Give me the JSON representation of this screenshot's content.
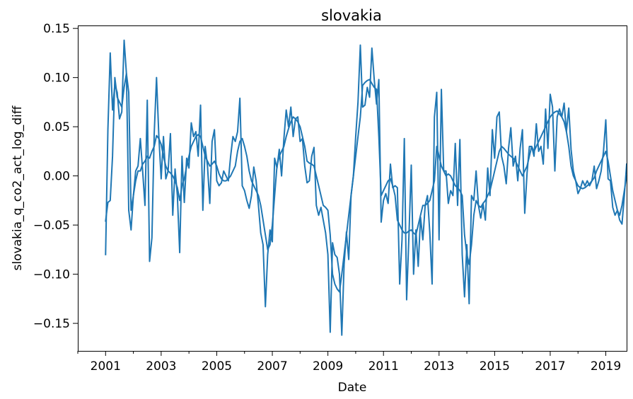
{
  "chart_data": {
    "type": "line",
    "title": "slovakia",
    "xlabel": "Date",
    "ylabel": "slovakia_q_co2_act_log_diff",
    "xlim": [
      2000.0,
      2019.75
    ],
    "ylim": [
      -0.178,
      0.153
    ],
    "x_ticks": [
      2001,
      2003,
      2005,
      2007,
      2009,
      2011,
      2013,
      2015,
      2017,
      2019
    ],
    "x_minor_ticks": [
      2000,
      2002,
      2004,
      2006,
      2008,
      2010,
      2012,
      2014,
      2016,
      2018
    ],
    "y_ticks": [
      -0.15,
      -0.1,
      -0.05,
      0.0,
      0.05,
      0.1,
      0.15
    ],
    "y_tick_labels": [
      "−0.15",
      "−0.10",
      "−0.05",
      "0.00",
      "0.05",
      "0.10",
      "0.15"
    ],
    "grid": false,
    "series": [
      {
        "color": "#1f77b4",
        "x": [
          2001.0,
          2001.083,
          2001.167,
          2001.25,
          2001.333,
          2001.417,
          2001.5,
          2001.583,
          2001.667,
          2001.75,
          2001.833,
          2001.917,
          2002.0,
          2002.083,
          2002.167,
          2002.25,
          2002.333,
          2002.417,
          2002.5,
          2002.583,
          2002.667,
          2002.75,
          2002.833,
          2002.917,
          2003.0,
          2003.083,
          2003.167,
          2003.25,
          2003.333,
          2003.417,
          2003.5,
          2003.583,
          2003.667,
          2003.75,
          2003.833,
          2003.917,
          2004.0,
          2004.083,
          2004.167,
          2004.25,
          2004.333,
          2004.417,
          2004.5,
          2004.583,
          2004.667,
          2004.75,
          2004.833,
          2004.917,
          2005.0,
          2005.083,
          2005.167,
          2005.25,
          2005.333,
          2005.417,
          2005.5,
          2005.583,
          2005.667,
          2005.75,
          2005.833,
          2005.917,
          2006.0,
          2006.083,
          2006.167,
          2006.25,
          2006.333,
          2006.417,
          2006.5,
          2006.583,
          2006.667,
          2006.75,
          2006.833,
          2006.917,
          2007.0,
          2007.083,
          2007.167,
          2007.25,
          2007.333,
          2007.417,
          2007.5,
          2007.583,
          2007.667,
          2007.75,
          2007.833,
          2007.917,
          2008.0,
          2008.083,
          2008.167,
          2008.25,
          2008.333,
          2008.417,
          2008.5,
          2008.583,
          2008.667,
          2008.75,
          2008.833,
          2008.917,
          2009.0,
          2009.083,
          2009.167,
          2009.25,
          2009.333,
          2009.417,
          2009.5,
          2009.583,
          2009.667,
          2009.75,
          2009.833,
          2009.917,
          2010.0,
          2010.083,
          2010.167,
          2010.25,
          2010.333,
          2010.417,
          2010.5,
          2010.583,
          2010.667,
          2010.75,
          2010.833,
          2010.917,
          2011.0,
          2011.083,
          2011.167,
          2011.25,
          2011.333,
          2011.417,
          2011.5,
          2011.583,
          2011.667,
          2011.75,
          2011.833,
          2011.917,
          2012.0,
          2012.083,
          2012.167,
          2012.25,
          2012.333,
          2012.417,
          2012.5,
          2012.583,
          2012.667,
          2012.75,
          2012.833,
          2012.917,
          2013.0,
          2013.083,
          2013.167,
          2013.25,
          2013.333,
          2013.417,
          2013.5,
          2013.583,
          2013.667,
          2013.75,
          2013.833,
          2013.917,
          2014.0,
          2014.083,
          2014.167,
          2014.25,
          2014.333,
          2014.417,
          2014.5,
          2014.583,
          2014.667,
          2014.75,
          2014.833,
          2014.917,
          2015.0,
          2015.083,
          2015.167,
          2015.25,
          2015.333,
          2015.417,
          2015.5,
          2015.583,
          2015.667,
          2015.75,
          2015.833,
          2015.917,
          2016.0,
          2016.083,
          2016.167,
          2016.25,
          2016.333,
          2016.417,
          2016.5,
          2016.583,
          2016.667,
          2016.75,
          2016.833,
          2016.917,
          2017.0,
          2017.083,
          2017.167,
          2017.25,
          2017.333,
          2017.417,
          2017.5,
          2017.583,
          2017.667,
          2017.75,
          2017.833,
          2017.917,
          2018.0,
          2018.083,
          2018.167,
          2018.25,
          2018.333,
          2018.417,
          2018.5,
          2018.583,
          2018.667,
          2018.75,
          2018.833,
          2018.917,
          2019.0,
          2019.083,
          2019.167,
          2019.25,
          2019.333,
          2019.417,
          2019.5,
          2019.583,
          2019.667,
          2019.75
        ],
        "y": [
          -0.08,
          0.047,
          0.125,
          0.067,
          0.093,
          0.085,
          0.058,
          0.065,
          0.138,
          0.104,
          -0.035,
          -0.055,
          -0.02,
          0.005,
          0.01,
          0.038,
          0.005,
          -0.03,
          0.077,
          -0.087,
          -0.063,
          0.043,
          0.1,
          0.04,
          -0.003,
          0.04,
          -0.003,
          0.005,
          0.043,
          -0.04,
          0.007,
          -0.02,
          -0.078,
          0.02,
          -0.027,
          0.018,
          0.008,
          0.054,
          0.04,
          0.045,
          0.02,
          0.072,
          -0.035,
          0.03,
          0.01,
          -0.028,
          0.035,
          0.047,
          -0.005,
          -0.01,
          -0.007,
          0.005,
          0.0,
          -0.005,
          0.02,
          0.04,
          0.035,
          0.045,
          0.079,
          -0.01,
          -0.015,
          -0.025,
          -0.033,
          -0.02,
          0.009,
          -0.005,
          -0.03,
          -0.058,
          -0.07,
          -0.133,
          -0.08,
          -0.055,
          -0.067,
          0.018,
          0.008,
          0.027,
          0.0,
          0.038,
          0.067,
          0.05,
          0.07,
          0.04,
          0.058,
          0.06,
          0.035,
          0.038,
          0.01,
          -0.007,
          -0.005,
          0.02,
          0.029,
          -0.03,
          -0.04,
          -0.032,
          -0.045,
          -0.058,
          -0.08,
          -0.159,
          -0.068,
          -0.08,
          -0.083,
          -0.1,
          -0.162,
          -0.09,
          -0.057,
          -0.085,
          -0.02,
          0.0,
          0.04,
          0.075,
          0.133,
          0.07,
          0.072,
          0.09,
          0.08,
          0.13,
          0.098,
          0.073,
          0.098,
          -0.047,
          -0.025,
          -0.018,
          -0.028,
          0.012,
          -0.012,
          -0.01,
          -0.012,
          -0.11,
          -0.065,
          0.038,
          -0.126,
          -0.06,
          0.011,
          -0.1,
          -0.055,
          -0.092,
          -0.042,
          -0.065,
          -0.03,
          -0.02,
          -0.058,
          -0.11,
          0.06,
          0.085,
          -0.065,
          0.088,
          0.005,
          0.005,
          -0.028,
          -0.015,
          -0.02,
          0.033,
          -0.03,
          0.037,
          -0.08,
          -0.123,
          -0.07,
          -0.13,
          -0.02,
          -0.025,
          0.005,
          -0.03,
          -0.043,
          -0.028,
          -0.045,
          0.008,
          -0.02,
          0.047,
          0.018,
          0.06,
          0.065,
          0.02,
          0.01,
          -0.008,
          0.028,
          0.049,
          0.01,
          0.02,
          -0.005,
          0.028,
          0.047,
          -0.038,
          0.003,
          0.03,
          0.03,
          0.02,
          0.053,
          0.025,
          0.03,
          0.012,
          0.068,
          0.028,
          0.083,
          0.07,
          0.005,
          0.06,
          0.068,
          0.06,
          0.074,
          0.045,
          0.069,
          0.027,
          0.005,
          -0.005,
          -0.018,
          -0.013,
          -0.005,
          -0.01,
          -0.005,
          -0.01,
          -0.005,
          0.01,
          -0.013,
          -0.005,
          0.005,
          0.025,
          0.057,
          -0.003,
          -0.005,
          -0.032,
          -0.04,
          -0.035,
          -0.045,
          -0.049,
          -0.02,
          0.012
        ]
      },
      {
        "color": "#1f77b4",
        "x": [
          2001.0,
          2001.083,
          2001.167,
          2001.25,
          2001.333,
          2001.417,
          2001.5,
          2001.583,
          2001.667,
          2001.75,
          2001.833,
          2001.917,
          2002.0,
          2002.083,
          2002.167,
          2002.25,
          2002.333,
          2002.417,
          2002.5,
          2002.583,
          2002.667,
          2002.75,
          2002.833,
          2002.917,
          2003.0,
          2003.083,
          2003.167,
          2003.25,
          2003.333,
          2003.417,
          2003.5,
          2003.583,
          2003.667,
          2003.75,
          2003.833,
          2003.917,
          2004.0,
          2004.083,
          2004.167,
          2004.25,
          2004.333,
          2004.417,
          2004.5,
          2004.583,
          2004.667,
          2004.75,
          2004.833,
          2004.917,
          2005.0,
          2005.083,
          2005.167,
          2005.25,
          2005.333,
          2005.417,
          2005.5,
          2005.583,
          2005.667,
          2005.75,
          2005.833,
          2005.917,
          2006.0,
          2006.083,
          2006.167,
          2006.25,
          2006.333,
          2006.417,
          2006.5,
          2006.583,
          2006.667,
          2006.75,
          2006.833,
          2006.917,
          2007.0,
          2007.083,
          2007.167,
          2007.25,
          2007.333,
          2007.417,
          2007.5,
          2007.583,
          2007.667,
          2007.75,
          2007.833,
          2007.917,
          2008.0,
          2008.083,
          2008.167,
          2008.25,
          2008.333,
          2008.417,
          2008.5,
          2008.583,
          2008.667,
          2008.75,
          2008.833,
          2008.917,
          2009.0,
          2009.083,
          2009.167,
          2009.25,
          2009.333,
          2009.417,
          2009.5,
          2009.583,
          2009.667,
          2009.75,
          2009.833,
          2009.917,
          2010.0,
          2010.083,
          2010.167,
          2010.25,
          2010.333,
          2010.417,
          2010.5,
          2010.583,
          2010.667,
          2010.75,
          2010.833,
          2010.917,
          2011.0,
          2011.083,
          2011.167,
          2011.25,
          2011.333,
          2011.417,
          2011.5,
          2011.583,
          2011.667,
          2011.75,
          2011.833,
          2011.917,
          2012.0,
          2012.083,
          2012.167,
          2012.25,
          2012.333,
          2012.417,
          2012.5,
          2012.583,
          2012.667,
          2012.75,
          2012.833,
          2012.917,
          2013.0,
          2013.083,
          2013.167,
          2013.25,
          2013.333,
          2013.417,
          2013.5,
          2013.583,
          2013.667,
          2013.75,
          2013.833,
          2013.917,
          2014.0,
          2014.083,
          2014.167,
          2014.25,
          2014.333,
          2014.417,
          2014.5,
          2014.583,
          2014.667,
          2014.75,
          2014.833,
          2014.917,
          2015.0,
          2015.083,
          2015.167,
          2015.25,
          2015.333,
          2015.417,
          2015.5,
          2015.583,
          2015.667,
          2015.75,
          2015.833,
          2015.917,
          2016.0,
          2016.083,
          2016.167,
          2016.25,
          2016.333,
          2016.417,
          2016.5,
          2016.583,
          2016.667,
          2016.75,
          2016.833,
          2016.917,
          2017.0,
          2017.083,
          2017.167,
          2017.25,
          2017.333,
          2017.417,
          2017.5,
          2017.583,
          2017.667,
          2017.75,
          2017.833,
          2017.917,
          2018.0,
          2018.083,
          2018.167,
          2018.25,
          2018.333,
          2018.417,
          2018.5,
          2018.583,
          2018.667,
          2018.75,
          2018.833,
          2018.917,
          2019.0,
          2019.083,
          2019.167,
          2019.25,
          2019.333,
          2019.417,
          2019.5,
          2019.583,
          2019.667,
          2019.75
        ],
        "y": [
          -0.046,
          -0.027,
          -0.025,
          0.02,
          0.1,
          0.08,
          0.075,
          0.07,
          0.09,
          0.104,
          0.085,
          -0.035,
          -0.02,
          -0.005,
          0.005,
          0.005,
          0.012,
          0.015,
          0.02,
          0.018,
          0.025,
          0.03,
          0.041,
          0.038,
          0.032,
          0.02,
          0.01,
          0.005,
          0.003,
          0.0,
          -0.005,
          -0.012,
          -0.025,
          -0.01,
          -0.003,
          0.01,
          0.02,
          0.03,
          0.035,
          0.04,
          0.042,
          0.04,
          0.03,
          0.02,
          0.015,
          0.01,
          0.012,
          0.015,
          0.01,
          0.002,
          -0.003,
          -0.005,
          -0.005,
          -0.003,
          0.0,
          0.005,
          0.01,
          0.025,
          0.035,
          0.038,
          0.03,
          0.02,
          0.005,
          -0.005,
          -0.01,
          -0.015,
          -0.02,
          -0.03,
          -0.045,
          -0.06,
          -0.075,
          -0.07,
          -0.05,
          -0.02,
          0.01,
          0.02,
          0.025,
          0.03,
          0.04,
          0.048,
          0.055,
          0.06,
          0.058,
          0.055,
          0.05,
          0.04,
          0.03,
          0.015,
          0.013,
          0.012,
          0.01,
          0.0,
          -0.01,
          -0.02,
          -0.03,
          -0.032,
          -0.035,
          -0.06,
          -0.1,
          -0.11,
          -0.115,
          -0.118,
          -0.1,
          -0.08,
          -0.06,
          -0.04,
          -0.02,
          0.0,
          0.02,
          0.04,
          0.06,
          0.092,
          0.095,
          0.097,
          0.098,
          0.094,
          0.09,
          0.088,
          0.04,
          -0.02,
          -0.015,
          -0.01,
          -0.005,
          -0.003,
          -0.01,
          -0.02,
          -0.045,
          -0.05,
          -0.055,
          -0.058,
          -0.058,
          -0.056,
          -0.055,
          -0.058,
          -0.06,
          -0.05,
          -0.04,
          -0.03,
          -0.03,
          -0.028,
          -0.025,
          -0.015,
          -0.005,
          0.03,
          0.02,
          0.01,
          0.005,
          0.0,
          0.002,
          0.0,
          -0.005,
          -0.01,
          -0.012,
          -0.015,
          -0.02,
          -0.06,
          -0.08,
          -0.09,
          -0.07,
          -0.04,
          -0.025,
          -0.03,
          -0.032,
          -0.028,
          -0.025,
          -0.02,
          -0.015,
          -0.005,
          0.005,
          0.015,
          0.025,
          0.03,
          0.028,
          0.025,
          0.022,
          0.02,
          0.018,
          0.015,
          0.01,
          0.005,
          0.0,
          0.005,
          0.01,
          0.02,
          0.03,
          0.025,
          0.03,
          0.035,
          0.04,
          0.045,
          0.05,
          0.055,
          0.06,
          0.063,
          0.065,
          0.066,
          0.063,
          0.06,
          0.055,
          0.045,
          0.03,
          0.01,
          0.0,
          -0.005,
          -0.01,
          -0.012,
          -0.013,
          -0.012,
          -0.01,
          -0.008,
          -0.005,
          -0.002,
          0.005,
          0.01,
          0.015,
          0.02,
          0.025,
          0.015,
          0.0,
          -0.015,
          -0.025,
          -0.035,
          -0.04,
          -0.03,
          -0.015,
          0.0
        ]
      }
    ]
  }
}
